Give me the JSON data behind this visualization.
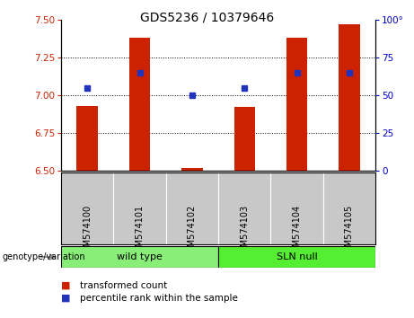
{
  "title": "GDS5236 / 10379646",
  "categories": [
    "GSM574100",
    "GSM574101",
    "GSM574102",
    "GSM574103",
    "GSM574104",
    "GSM574105"
  ],
  "bar_values": [
    6.93,
    7.38,
    6.52,
    6.92,
    7.38,
    7.47
  ],
  "percentile_values": [
    55,
    65,
    50,
    55,
    65,
    65
  ],
  "bar_bottom": 6.5,
  "ylim_left": [
    6.5,
    7.5
  ],
  "ylim_right": [
    0,
    100
  ],
  "yticks_left": [
    6.5,
    6.75,
    7.0,
    7.25,
    7.5
  ],
  "yticks_right": [
    0,
    25,
    50,
    75,
    100
  ],
  "grid_yticks": [
    6.75,
    7.0,
    7.25
  ],
  "bar_color": "#cc2200",
  "dot_color": "#2233bb",
  "background_color": "#ffffff",
  "plot_bg_color": "#ffffff",
  "label_area_color": "#c8c8c8",
  "groups": [
    {
      "label": "wild type",
      "samples": [
        0,
        1,
        2
      ],
      "color": "#88ee77"
    },
    {
      "label": "SLN null",
      "samples": [
        3,
        4,
        5
      ],
      "color": "#55ee33"
    }
  ],
  "genotype_label": "genotype/variation",
  "legend_items": [
    {
      "label": "transformed count",
      "color": "#cc2200"
    },
    {
      "label": "percentile rank within the sample",
      "color": "#2233bb"
    }
  ],
  "right_axis_color": "#0000cc",
  "left_axis_color": "#cc2200",
  "bar_width": 0.4,
  "title_fontsize": 10,
  "tick_fontsize": 7.5,
  "label_fontsize": 7,
  "group_fontsize": 8,
  "legend_fontsize": 7.5
}
